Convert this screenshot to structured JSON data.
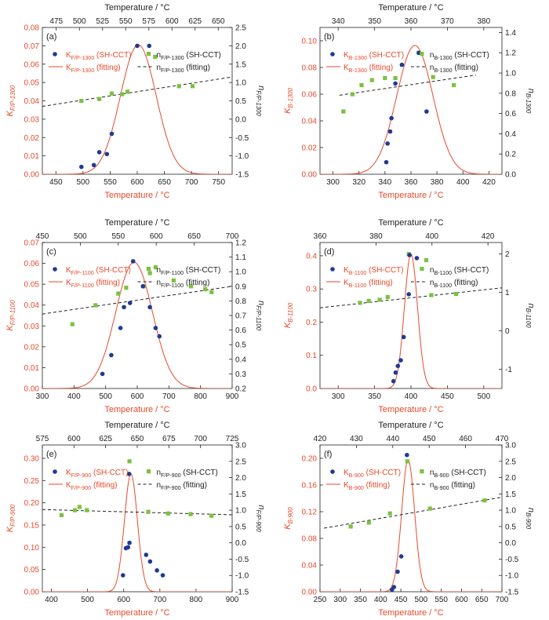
{
  "colors": {
    "red": "#e8492b",
    "blue": "#1f3a93",
    "green": "#7ac142",
    "black": "#222222"
  },
  "top_axis_label": "Temperature / °C",
  "bottom_axis_label": "Temperature / °C",
  "fit_label": "(fitting)",
  "shcct_label": "(SH-CCT)",
  "chart_data": [
    {
      "type": "scatter",
      "panel": "(a)",
      "k_sub": "F/P-1300",
      "k_prefix": "K",
      "n_sub": "F/P-1300",
      "xlabel": "Temperature / °C",
      "top_xlabel": "Temperature / °C",
      "xlim": [
        425,
        775
      ],
      "xticks": [
        450,
        500,
        550,
        600,
        650,
        700,
        750
      ],
      "top_lim": [
        460,
        665
      ],
      "top_ticks": [
        475,
        500,
        525,
        550,
        575,
        600,
        625,
        650
      ],
      "ylim": [
        0,
        0.08
      ],
      "yticks": [
        0.0,
        0.01,
        0.02,
        0.03,
        0.04,
        0.05,
        0.06,
        0.07,
        0.08
      ],
      "ydec": 2,
      "ylabel": "K_F/P-1300",
      "y2label": "n_F/P-1300",
      "y2lim": [
        -1.5,
        2.5
      ],
      "y2ticks": [
        -1.5,
        -1.0,
        -0.5,
        0.0,
        0.5,
        1.0,
        1.5,
        2.0,
        2.5
      ],
      "y2dec": 1,
      "k_points": [
        [
          497,
          0.004
        ],
        [
          520,
          0.005
        ],
        [
          530,
          0.012
        ],
        [
          544,
          0.011
        ],
        [
          553,
          0.022
        ],
        [
          600,
          0.07
        ],
        [
          622,
          0.07
        ]
      ],
      "n_points": [
        [
          497,
          0.5
        ],
        [
          530,
          0.55
        ],
        [
          553,
          0.7
        ],
        [
          572,
          0.68
        ],
        [
          582,
          0.75
        ],
        [
          633,
          1.7
        ],
        [
          677,
          0.9
        ],
        [
          702,
          0.9
        ]
      ],
      "k_fit": {
        "peak": 0.0705,
        "center": 602,
        "sigma": 33
      },
      "n_fit": [
        [
          425,
          0.35
        ],
        [
          775,
          1.15
        ]
      ]
    },
    {
      "type": "scatter",
      "panel": "(b)",
      "k_sub": "B-1300",
      "k_prefix": "K",
      "n_sub": "B-1300",
      "xlabel": "Temperature / °C",
      "top_xlabel": "Temperature / °C",
      "xlim": [
        290,
        430
      ],
      "xticks": [
        300,
        320,
        340,
        360,
        380,
        400,
        420
      ],
      "top_lim": [
        335,
        385
      ],
      "top_ticks": [
        340,
        350,
        360,
        370,
        380
      ],
      "ylim": [
        0,
        0.11
      ],
      "yticks": [
        0.0,
        0.02,
        0.04,
        0.06,
        0.08,
        0.1
      ],
      "ydec": 2,
      "ylabel": "K_B-1300",
      "y2label": "n_B-1300",
      "y2lim": [
        0,
        1.45
      ],
      "y2ticks": [
        0.0,
        0.2,
        0.4,
        0.6,
        0.8,
        1.0,
        1.2,
        1.4
      ],
      "y2dec": 1,
      "k_points": [
        [
          341,
          0.009
        ],
        [
          342,
          0.023
        ],
        [
          344,
          0.032
        ],
        [
          345,
          0.042
        ],
        [
          348,
          0.068
        ],
        [
          353,
          0.082
        ],
        [
          366,
          0.091
        ],
        [
          372,
          0.047
        ]
      ],
      "n_points": [
        [
          308,
          0.62
        ],
        [
          315,
          0.79
        ],
        [
          322,
          0.88
        ],
        [
          330,
          0.93
        ],
        [
          340,
          0.95
        ],
        [
          348,
          0.95
        ],
        [
          366,
          1.2
        ],
        [
          377,
          0.96
        ],
        [
          393,
          0.88
        ]
      ],
      "k_fit": {
        "peak": 0.0965,
        "center": 363,
        "sigma": 14
      },
      "n_fit": [
        [
          305,
          0.78
        ],
        [
          410,
          0.98
        ]
      ]
    },
    {
      "type": "scatter",
      "panel": "(c)",
      "k_sub": "F/P-1100",
      "k_prefix": "K",
      "n_sub": "F/P-1100",
      "xlabel": "Temperature / °C",
      "top_xlabel": "Temperature / °C",
      "xlim": [
        300,
        900
      ],
      "xticks": [
        300,
        400,
        500,
        600,
        700,
        800,
        900
      ],
      "top_lim": [
        450,
        700
      ],
      "top_ticks": [
        450,
        500,
        550,
        600,
        650,
        700
      ],
      "ylim": [
        0,
        0.07
      ],
      "yticks": [
        0.0,
        0.01,
        0.02,
        0.03,
        0.04,
        0.05,
        0.06,
        0.07
      ],
      "ydec": 2,
      "ylabel": "K_F/P-1100",
      "y2label": "n_F/P-1100",
      "y2lim": [
        0.2,
        1.2
      ],
      "y2ticks": [
        0.2,
        0.3,
        0.4,
        0.5,
        0.6,
        0.7,
        0.8,
        0.9,
        1.0,
        1.1,
        1.2
      ],
      "y2dec": 1,
      "k_points": [
        [
          490,
          0.007
        ],
        [
          518,
          0.016
        ],
        [
          547,
          0.029
        ],
        [
          558,
          0.039
        ],
        [
          577,
          0.041
        ],
        [
          587,
          0.061
        ],
        [
          618,
          0.049
        ],
        [
          640,
          0.039
        ],
        [
          658,
          0.029
        ],
        [
          670,
          0.025
        ]
      ],
      "n_points": [
        [
          395,
          0.64
        ],
        [
          468,
          0.77
        ],
        [
          540,
          0.85
        ],
        [
          565,
          0.89
        ],
        [
          620,
          0.9
        ],
        [
          640,
          0.99
        ],
        [
          658,
          1.03
        ],
        [
          715,
          0.94
        ],
        [
          770,
          0.9
        ],
        [
          815,
          0.88
        ],
        [
          835,
          0.86
        ]
      ],
      "k_fit": {
        "peak": 0.0605,
        "center": 590,
        "sigma": 58
      },
      "n_fit": [
        [
          300,
          0.71
        ],
        [
          900,
          0.9
        ]
      ]
    },
    {
      "type": "scatter",
      "panel": "(d)",
      "k_sub": "B-1100",
      "k_prefix": "K",
      "n_sub": "B-1100",
      "xlabel": "Temperature / °C",
      "top_xlabel": "Temperature / °C",
      "xlim": [
        275,
        525
      ],
      "xticks": [
        300,
        350,
        400,
        450,
        500
      ],
      "top_lim": [
        360,
        425
      ],
      "top_ticks": [
        360,
        380,
        400,
        420
      ],
      "ylim": [
        0,
        0.44
      ],
      "yticks": [
        0.0,
        0.1,
        0.2,
        0.3,
        0.4
      ],
      "ydec": 1,
      "ylabel": "K_B-1100",
      "y2label": "n_B-1100",
      "y2lim": [
        -1.5,
        2.3
      ],
      "y2ticks": [
        -1,
        0,
        1,
        2
      ],
      "y2dec": 0,
      "k_points": [
        [
          376,
          0.022
        ],
        [
          379,
          0.048
        ],
        [
          382,
          0.068
        ],
        [
          386,
          0.085
        ],
        [
          390,
          0.155
        ],
        [
          397,
          0.284
        ],
        [
          398,
          0.402
        ],
        [
          408,
          0.393
        ]
      ],
      "n_points": [
        [
          330,
          0.73
        ],
        [
          342,
          0.78
        ],
        [
          357,
          0.81
        ],
        [
          368,
          0.88
        ],
        [
          397,
          2.0
        ],
        [
          421,
          1.84
        ],
        [
          428,
          0.93
        ],
        [
          462,
          0.96
        ]
      ],
      "k_fit": {
        "peak": 0.405,
        "center": 400,
        "sigma": 9
      },
      "n_fit": [
        [
          275,
          0.6
        ],
        [
          525,
          1.12
        ]
      ]
    },
    {
      "type": "scatter",
      "panel": "(e)",
      "k_sub": "F/P-900",
      "k_prefix": "K",
      "n_sub": "F/P-900",
      "xlabel": "Temperature / °C",
      "top_xlabel": "Temperature / °C",
      "xlim": [
        375,
        900
      ],
      "xticks": [
        400,
        500,
        600,
        700,
        800,
        900
      ],
      "top_lim": [
        575,
        725
      ],
      "top_ticks": [
        575,
        600,
        625,
        650,
        675,
        700,
        725
      ],
      "ylim": [
        0,
        0.33
      ],
      "yticks": [
        0.0,
        0.05,
        0.1,
        0.15,
        0.2,
        0.25,
        0.3
      ],
      "ydec": 2,
      "ylabel": "K_F/P-900",
      "y2label": "n_F/P-900",
      "y2lim": [
        -1.5,
        3.0
      ],
      "y2ticks": [
        -1.5,
        -1.0,
        -0.5,
        0.0,
        0.5,
        1.0,
        1.5,
        2.0,
        2.5,
        3.0
      ],
      "y2dec": 1,
      "k_points": [
        [
          598,
          0.037
        ],
        [
          606,
          0.098
        ],
        [
          612,
          0.1
        ],
        [
          616,
          0.11
        ],
        [
          615,
          0.265
        ],
        [
          662,
          0.083
        ],
        [
          673,
          0.068
        ],
        [
          692,
          0.048
        ],
        [
          708,
          0.037
        ]
      ],
      "n_points": [
        [
          428,
          0.85
        ],
        [
          465,
          1.0
        ],
        [
          478,
          1.1
        ],
        [
          498,
          1.0
        ],
        [
          616,
          2.5
        ],
        [
          668,
          0.95
        ],
        [
          723,
          0.9
        ],
        [
          785,
          0.88
        ],
        [
          843,
          0.83
        ]
      ],
      "k_fit": {
        "peak": 0.265,
        "center": 620,
        "sigma": 18
      },
      "n_fit": [
        [
          375,
          1.02
        ],
        [
          900,
          0.86
        ]
      ]
    },
    {
      "type": "scatter",
      "panel": "(f)",
      "k_sub": "B-900",
      "k_prefix": "K",
      "n_sub": "B-900",
      "xlabel": "Temperature / °C",
      "top_xlabel": "Temperature / °C",
      "xlim": [
        250,
        700
      ],
      "xticks": [
        250,
        300,
        350,
        400,
        450,
        500,
        550,
        600,
        650,
        700
      ],
      "top_lim": [
        420,
        470
      ],
      "top_ticks": [
        420,
        430,
        440,
        450,
        460,
        470
      ],
      "ylim": [
        0,
        0.22
      ],
      "yticks": [
        0.0,
        0.04,
        0.08,
        0.12,
        0.16,
        0.2
      ],
      "ydec": 2,
      "ylabel": "K_B-900",
      "y2label": "n_B-900",
      "y2lim": [
        -1.5,
        3.0
      ],
      "y2ticks": [
        -1.5,
        -1.0,
        -0.5,
        0.0,
        0.5,
        1.0,
        1.5,
        2.0,
        2.5,
        3.0
      ],
      "y2dec": 1,
      "k_points": [
        [
          428,
          0.003
        ],
        [
          433,
          0.007
        ],
        [
          442,
          0.03
        ],
        [
          451,
          0.053
        ],
        [
          465,
          0.205
        ]
      ],
      "n_points": [
        [
          326,
          0.5
        ],
        [
          371,
          0.62
        ],
        [
          423,
          0.9
        ],
        [
          466,
          2.5
        ],
        [
          522,
          1.05
        ],
        [
          657,
          1.3
        ]
      ],
      "k_fit": {
        "peak": 0.198,
        "center": 468,
        "sigma": 16
      },
      "n_fit": [
        [
          260,
          0.45
        ],
        [
          700,
          1.4
        ]
      ]
    }
  ]
}
